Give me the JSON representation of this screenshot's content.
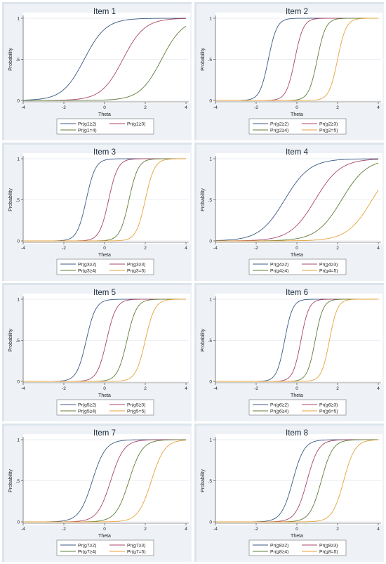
{
  "layout": {
    "x_label": "Theta",
    "y_label": "Probability"
  },
  "chart_data": [
    {
      "type": "line",
      "title": "Item 1",
      "xlabel": "Theta",
      "ylabel": "Probability",
      "xlim": [
        -4,
        4
      ],
      "ylim": [
        0,
        1
      ],
      "x_ticks": [
        "-4",
        "-2",
        "0",
        "2",
        "4"
      ],
      "y_ticks": [
        "0",
        ".5",
        "1"
      ],
      "discrimination": 1.1,
      "series": [
        {
          "name": "Pr(g1≥2)",
          "threshold": -1.0,
          "color": "#3a5a83"
        },
        {
          "name": "Pr(g1≥3)",
          "threshold": 0.9,
          "color": "#a84668"
        },
        {
          "name": "Pr(g1=4)",
          "threshold": 2.8,
          "color": "#5f7d3a"
        }
      ]
    },
    {
      "type": "line",
      "title": "Item 2",
      "xlabel": "Theta",
      "ylabel": "Probability",
      "xlim": [
        -4,
        4
      ],
      "ylim": [
        0,
        1
      ],
      "x_ticks": [
        "-4",
        "-2",
        "0",
        "2",
        "4"
      ],
      "y_ticks": [
        "0",
        ".5",
        "1"
      ],
      "discrimination": 2.8,
      "series": [
        {
          "name": "Pr(g2≥2)",
          "threshold": -1.4,
          "color": "#3a5a83"
        },
        {
          "name": "Pr(g2≥3)",
          "threshold": -0.1,
          "color": "#a84668"
        },
        {
          "name": "Pr(g2≥4)",
          "threshold": 1.0,
          "color": "#5f7d3a"
        },
        {
          "name": "Pr(g2=5)",
          "threshold": 2.0,
          "color": "#e6a23a"
        }
      ]
    },
    {
      "type": "line",
      "title": "Item 3",
      "xlabel": "Theta",
      "ylabel": "Probability",
      "xlim": [
        -4,
        4
      ],
      "ylim": [
        0,
        1
      ],
      "x_ticks": [
        "-4",
        "-2",
        "0",
        "2",
        "4"
      ],
      "y_ticks": [
        "0",
        ".5",
        "1"
      ],
      "discrimination": 2.6,
      "series": [
        {
          "name": "Pr(g3≥2)",
          "threshold": -0.9,
          "color": "#3a5a83"
        },
        {
          "name": "Pr(g3≥3)",
          "threshold": 0.2,
          "color": "#a84668"
        },
        {
          "name": "Pr(g3≥4)",
          "threshold": 1.2,
          "color": "#5f7d3a"
        },
        {
          "name": "Pr(g3=5)",
          "threshold": 2.0,
          "color": "#e6a23a"
        }
      ]
    },
    {
      "type": "line",
      "title": "Item 4",
      "xlabel": "Theta",
      "ylabel": "Probability",
      "xlim": [
        -4,
        4
      ],
      "ylim": [
        0,
        1
      ],
      "x_ticks": [
        "-4",
        "-2",
        "0",
        "2",
        "4"
      ],
      "y_ticks": [
        "0",
        ".5",
        "1"
      ],
      "discrimination": 0.95,
      "series": [
        {
          "name": "Pr(g4≥2)",
          "threshold": -0.6,
          "color": "#3a5a83"
        },
        {
          "name": "Pr(g4≥3)",
          "threshold": 0.9,
          "color": "#a84668"
        },
        {
          "name": "Pr(g4≥4)",
          "threshold": 2.2,
          "color": "#5f7d3a"
        },
        {
          "name": "Pr(g4=5)",
          "threshold": 3.7,
          "color": "#e6a23a"
        }
      ]
    },
    {
      "type": "line",
      "title": "Item 5",
      "xlabel": "Theta",
      "ylabel": "Probability",
      "xlim": [
        -4,
        4
      ],
      "ylim": [
        0,
        1
      ],
      "x_ticks": [
        "-4",
        "-2",
        "0",
        "2",
        "4"
      ],
      "y_ticks": [
        "0",
        ".5",
        "1"
      ],
      "discrimination": 2.5,
      "series": [
        {
          "name": "Pr(g5≥2)",
          "threshold": -0.9,
          "color": "#3a5a83"
        },
        {
          "name": "Pr(g5≥3)",
          "threshold": 0.1,
          "color": "#a84668"
        },
        {
          "name": "Pr(g5≥4)",
          "threshold": 1.1,
          "color": "#5f7d3a"
        },
        {
          "name": "Pr(g5=5)",
          "threshold": 2.0,
          "color": "#e6a23a"
        }
      ]
    },
    {
      "type": "line",
      "title": "Item 6",
      "xlabel": "Theta",
      "ylabel": "Probability",
      "xlim": [
        -4,
        4
      ],
      "ylim": [
        0,
        1
      ],
      "x_ticks": [
        "-4",
        "-2",
        "0",
        "2",
        "4"
      ],
      "y_ticks": [
        "0",
        ".5",
        "1"
      ],
      "discrimination": 3.0,
      "series": [
        {
          "name": "Pr(g6≥2)",
          "threshold": -0.6,
          "color": "#3a5a83"
        },
        {
          "name": "Pr(g6≥3)",
          "threshold": 0.2,
          "color": "#a84668"
        },
        {
          "name": "Pr(g6≥4)",
          "threshold": 0.9,
          "color": "#5f7d3a"
        },
        {
          "name": "Pr(g6=5)",
          "threshold": 1.6,
          "color": "#e6a23a"
        }
      ]
    },
    {
      "type": "line",
      "title": "Item 7",
      "xlabel": "Theta",
      "ylabel": "Probability",
      "xlim": [
        -4,
        4
      ],
      "ylim": [
        0,
        1
      ],
      "x_ticks": [
        "-4",
        "-2",
        "0",
        "2",
        "4"
      ],
      "y_ticks": [
        "0",
        ".5",
        "1"
      ],
      "discrimination": 1.8,
      "series": [
        {
          "name": "Pr(g7≥2)",
          "threshold": -0.6,
          "color": "#3a5a83"
        },
        {
          "name": "Pr(g7≥3)",
          "threshold": 0.3,
          "color": "#a84668"
        },
        {
          "name": "Pr(g7≥4)",
          "threshold": 1.2,
          "color": "#5f7d3a"
        },
        {
          "name": "Pr(g7=5)",
          "threshold": 2.3,
          "color": "#e6a23a"
        }
      ]
    },
    {
      "type": "line",
      "title": "Item 8",
      "xlabel": "Theta",
      "ylabel": "Probability",
      "xlim": [
        -4,
        4
      ],
      "ylim": [
        0,
        1
      ],
      "x_ticks": [
        "-4",
        "-2",
        "0",
        "2",
        "4"
      ],
      "y_ticks": [
        "0",
        ".5",
        "1"
      ],
      "discrimination": 2.1,
      "series": [
        {
          "name": "Pr(g8≥2)",
          "threshold": -0.2,
          "color": "#3a5a83"
        },
        {
          "name": "Pr(g8≥3)",
          "threshold": 0.5,
          "color": "#a84668"
        },
        {
          "name": "Pr(g8≥4)",
          "threshold": 1.2,
          "color": "#5f7d3a"
        },
        {
          "name": "Pr(g8=5)",
          "threshold": 2.3,
          "color": "#e6a23a"
        }
      ]
    }
  ]
}
